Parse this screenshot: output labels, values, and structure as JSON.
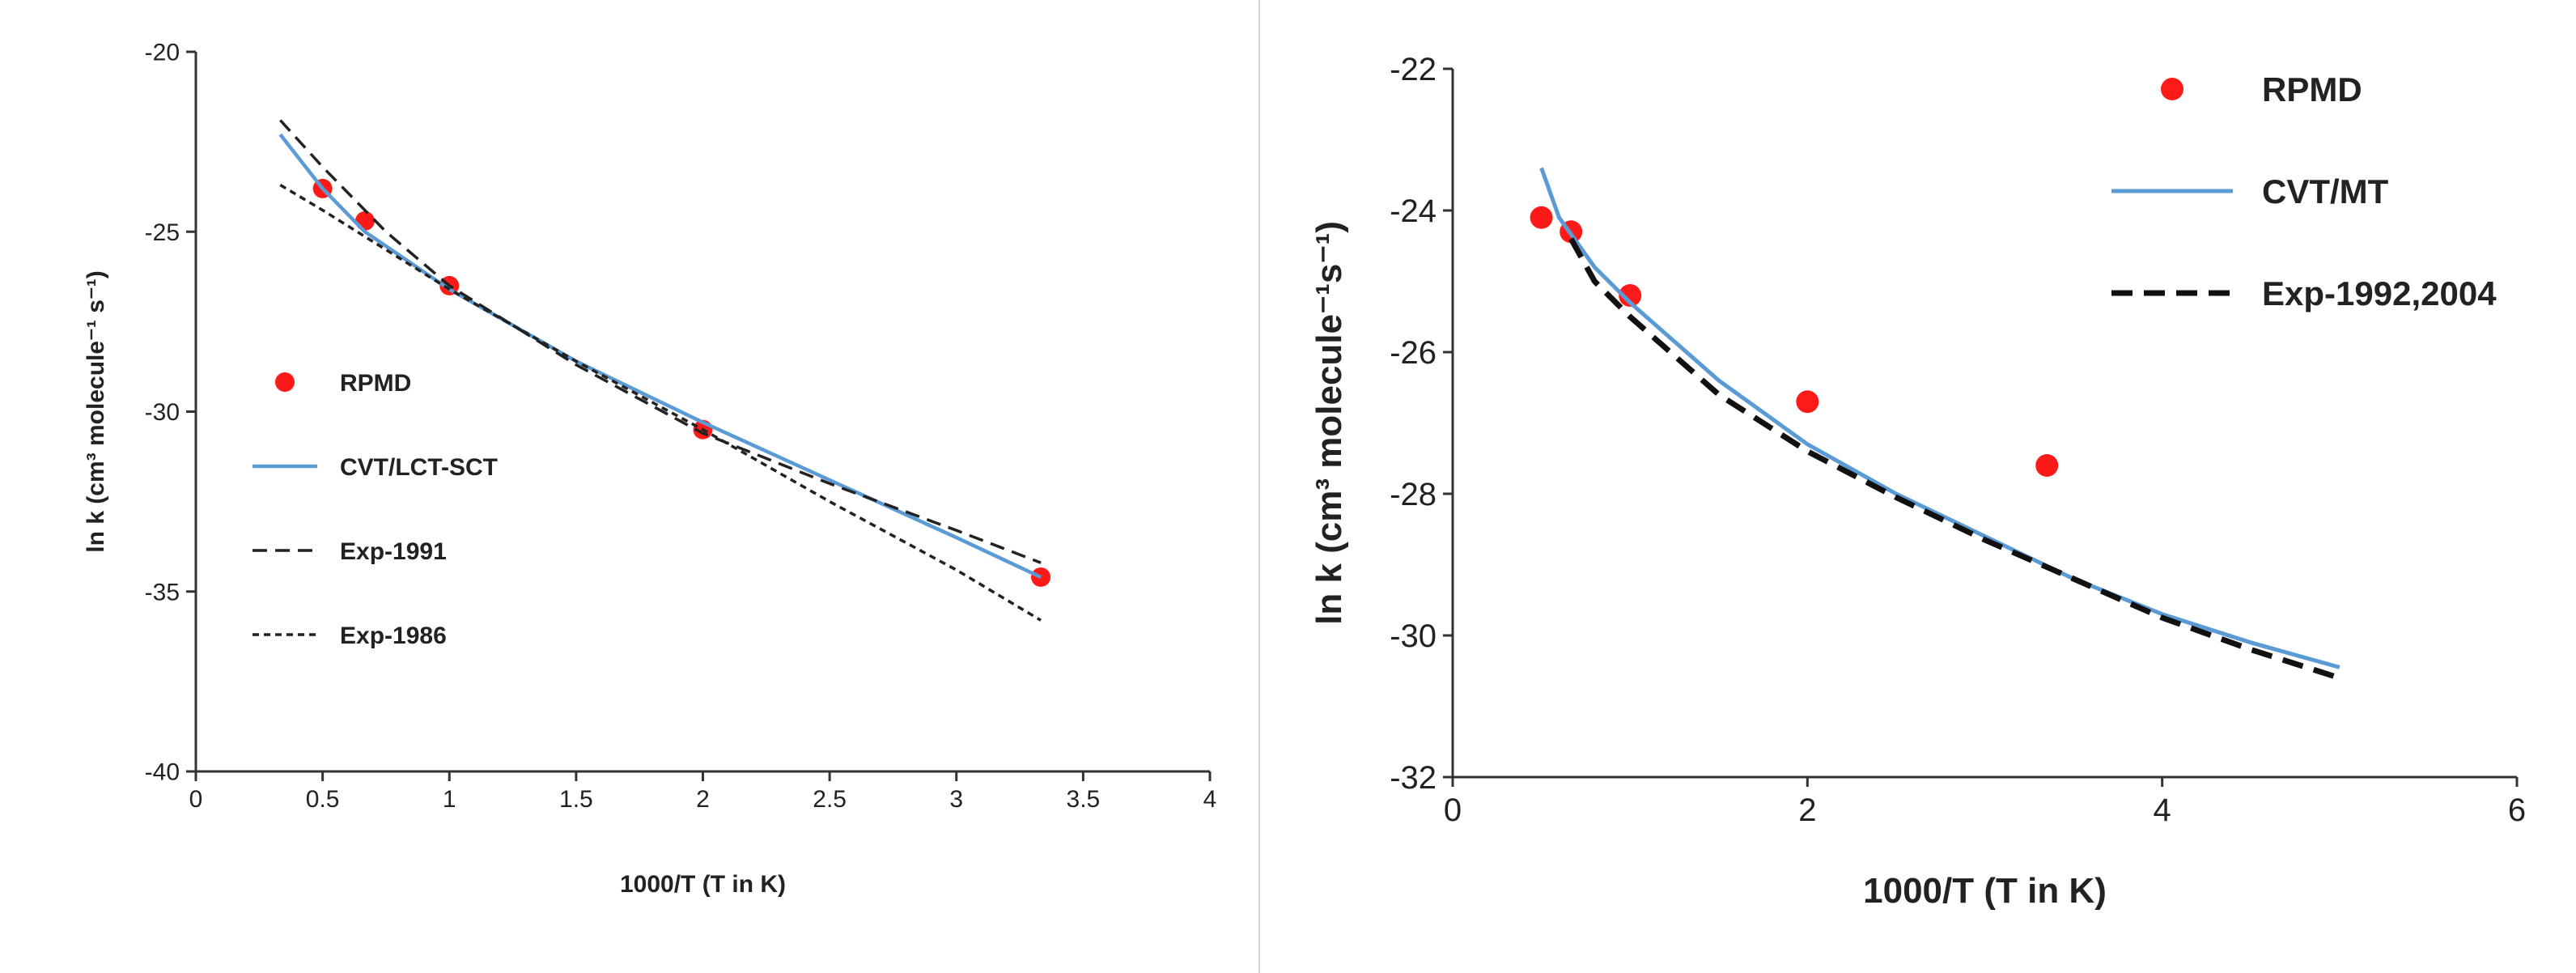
{
  "chart_data": [
    {
      "type": "line",
      "xlabel": "1000/T (T in K)",
      "ylabel": "ln k (cm³ molecule⁻¹ s⁻¹)",
      "xlim": [
        0,
        4
      ],
      "ylim": [
        -40,
        -20
      ],
      "x_ticks": [
        "0",
        "0.5",
        "1",
        "1.5",
        "2",
        "2.5",
        "3",
        "3.5",
        "4"
      ],
      "y_ticks": [
        "-20",
        "-25",
        "-30",
        "-35",
        "-40"
      ],
      "legend": [
        "RPMD",
        "CVT/LCT-SCT",
        "Exp-1991",
        "Exp-1986"
      ],
      "series": [
        {
          "name": "RPMD",
          "style": "points",
          "color": "#ff1a1a",
          "x": [
            0.5,
            0.667,
            1.0,
            2.0,
            3.333
          ],
          "y": [
            -23.8,
            -24.7,
            -26.5,
            -30.5,
            -34.6
          ]
        },
        {
          "name": "CVT/LCT-SCT",
          "style": "solid",
          "color": "#5b9bd5",
          "x": [
            0.333,
            0.5,
            0.667,
            1.0,
            1.5,
            2.0,
            2.5,
            3.0,
            3.333
          ],
          "y": [
            -22.3,
            -23.8,
            -25.0,
            -26.6,
            -28.6,
            -30.3,
            -31.9,
            -33.5,
            -34.6
          ]
        },
        {
          "name": "Exp-1991",
          "style": "dashed",
          "color": "#222222",
          "x": [
            0.333,
            0.5,
            0.75,
            1.0,
            1.5,
            2.0,
            2.5,
            3.0,
            3.333
          ],
          "y": [
            -21.9,
            -23.2,
            -25.0,
            -26.5,
            -28.7,
            -30.6,
            -32.0,
            -33.3,
            -34.2
          ]
        },
        {
          "name": "Exp-1986",
          "style": "dotted",
          "color": "#222222",
          "x": [
            0.333,
            0.5,
            0.75,
            1.0,
            1.5,
            2.0,
            2.5,
            3.0,
            3.333
          ],
          "y": [
            -23.7,
            -24.4,
            -25.5,
            -26.6,
            -28.6,
            -30.5,
            -32.5,
            -34.4,
            -35.8
          ]
        }
      ]
    },
    {
      "type": "line",
      "xlabel": "1000/T (T in K)",
      "ylabel": "ln k (cm³ molecule⁻¹s⁻¹)",
      "xlim": [
        0,
        6
      ],
      "ylim": [
        -32,
        -22
      ],
      "x_ticks": [
        "0",
        "2",
        "4",
        "6"
      ],
      "y_ticks": [
        "-22",
        "-24",
        "-26",
        "-28",
        "-30",
        "-32"
      ],
      "legend": [
        "RPMD",
        "CVT/MT",
        "Exp-1992,2004"
      ],
      "series": [
        {
          "name": "RPMD",
          "style": "points",
          "color": "#ff1a1a",
          "x": [
            0.5,
            0.667,
            1.0,
            2.0,
            3.35
          ],
          "y": [
            -24.1,
            -24.3,
            -25.2,
            -26.7,
            -27.6
          ]
        },
        {
          "name": "CVT/MT",
          "style": "solid",
          "color": "#5b9bd5",
          "x": [
            0.5,
            0.6,
            0.8,
            1.0,
            1.5,
            2.0,
            2.5,
            3.0,
            3.5,
            4.0,
            4.5,
            5.0
          ],
          "y": [
            -23.4,
            -24.1,
            -24.8,
            -25.3,
            -26.4,
            -27.3,
            -28.0,
            -28.6,
            -29.2,
            -29.7,
            -30.1,
            -30.45
          ]
        },
        {
          "name": "Exp-1992,2004",
          "style": "dashed",
          "color": "#111111",
          "x": [
            0.667,
            0.8,
            1.0,
            1.5,
            2.0,
            2.5,
            3.0,
            3.5,
            4.0,
            4.5,
            5.0
          ],
          "y": [
            -24.4,
            -25.0,
            -25.5,
            -26.6,
            -27.4,
            -28.05,
            -28.65,
            -29.2,
            -29.75,
            -30.2,
            -30.6
          ]
        }
      ]
    }
  ]
}
